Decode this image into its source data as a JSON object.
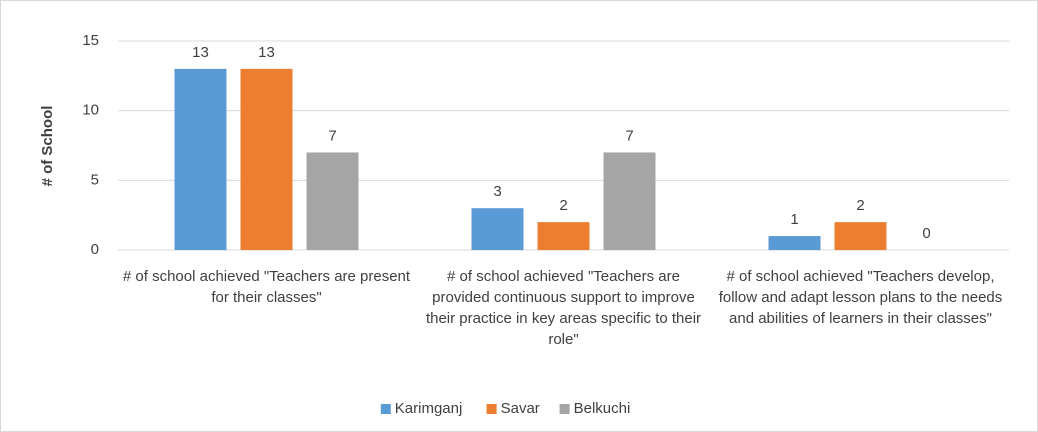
{
  "chart_data": {
    "type": "bar",
    "y_axis_label": "# of School",
    "categories": [
      "# of school achieved \"Teachers are present for their classes\"",
      "# of school achieved \"Teachers are provided continuous support to improve their practice in key areas specific to their role\"",
      "# of school achieved \"Teachers develop, follow and adapt lesson plans to the needs and abilities of learners in their classes\""
    ],
    "series": [
      {
        "name": "Karimganj",
        "color": "#5b9bd5",
        "values": [
          13,
          3,
          1
        ]
      },
      {
        "name": "Savar",
        "color": "#ed7d31",
        "values": [
          13,
          2,
          2
        ]
      },
      {
        "name": "Belkuchi",
        "color": "#a5a5a5",
        "values": [
          7,
          7,
          0
        ]
      }
    ],
    "ylim": [
      0,
      15
    ],
    "yticks": [
      0,
      5,
      10,
      15
    ],
    "grid": true,
    "legend": "bottom"
  }
}
